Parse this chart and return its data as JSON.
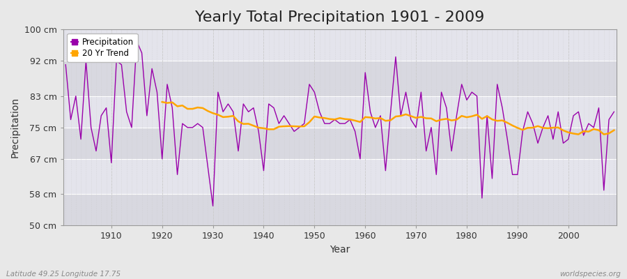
{
  "title": "Yearly Total Precipitation 1901 - 2009",
  "xlabel": "Year",
  "ylabel": "Precipitation",
  "subtitle_left": "Latitude 49.25 Longitude 17.75",
  "subtitle_right": "worldspecies.org",
  "ylim": [
    50,
    100
  ],
  "yticks": [
    50,
    58,
    67,
    75,
    83,
    92,
    100
  ],
  "ytick_labels": [
    "50 cm",
    "58 cm",
    "67 cm",
    "75 cm",
    "83 cm",
    "92 cm",
    "100 cm"
  ],
  "years": [
    1901,
    1902,
    1903,
    1904,
    1905,
    1906,
    1907,
    1908,
    1909,
    1910,
    1911,
    1912,
    1913,
    1914,
    1915,
    1916,
    1917,
    1918,
    1919,
    1920,
    1921,
    1922,
    1923,
    1924,
    1925,
    1926,
    1927,
    1928,
    1929,
    1930,
    1931,
    1932,
    1933,
    1934,
    1935,
    1936,
    1937,
    1938,
    1939,
    1940,
    1941,
    1942,
    1943,
    1944,
    1945,
    1946,
    1947,
    1948,
    1949,
    1950,
    1951,
    1952,
    1953,
    1954,
    1955,
    1956,
    1957,
    1958,
    1959,
    1960,
    1961,
    1962,
    1963,
    1964,
    1965,
    1966,
    1967,
    1968,
    1969,
    1970,
    1971,
    1972,
    1973,
    1974,
    1975,
    1976,
    1977,
    1978,
    1979,
    1980,
    1981,
    1982,
    1983,
    1984,
    1985,
    1986,
    1987,
    1988,
    1989,
    1990,
    1991,
    1992,
    1993,
    1994,
    1995,
    1996,
    1997,
    1998,
    1999,
    2000,
    2001,
    2002,
    2003,
    2004,
    2005,
    2006,
    2007,
    2008,
    2009
  ],
  "precipitation": [
    91,
    77,
    83,
    72,
    92,
    75,
    69,
    78,
    80,
    66,
    92,
    91,
    79,
    75,
    97,
    94,
    78,
    90,
    84,
    67,
    86,
    80,
    63,
    76,
    75,
    75,
    76,
    75,
    65,
    55,
    84,
    79,
    81,
    79,
    69,
    81,
    79,
    80,
    74,
    64,
    81,
    80,
    76,
    78,
    76,
    74,
    75,
    76,
    86,
    84,
    79,
    76,
    76,
    77,
    76,
    76,
    77,
    74,
    67,
    89,
    79,
    75,
    78,
    64,
    79,
    93,
    78,
    84,
    77,
    75,
    84,
    69,
    75,
    63,
    84,
    80,
    69,
    78,
    86,
    82,
    84,
    83,
    57,
    78,
    62,
    86,
    80,
    72,
    63,
    63,
    74,
    79,
    76,
    71,
    75,
    78,
    72,
    79,
    71,
    72,
    78,
    79,
    73,
    76,
    75,
    80,
    59,
    77,
    79
  ],
  "precip_color": "#9900AA",
  "trend_color": "#FFA500",
  "bg_color": "#e8e8e8",
  "plot_bg_color": "#e0e0e8",
  "band_colors": [
    "#d8d8e0",
    "#e4e4ec"
  ],
  "grid_color": "#ffffff",
  "vgrid_color": "#cccccc",
  "title_fontsize": 16,
  "label_fontsize": 10,
  "tick_fontsize": 9,
  "legend_labels": [
    "Precipitation",
    "20 Yr Trend"
  ],
  "trend_window": 20
}
